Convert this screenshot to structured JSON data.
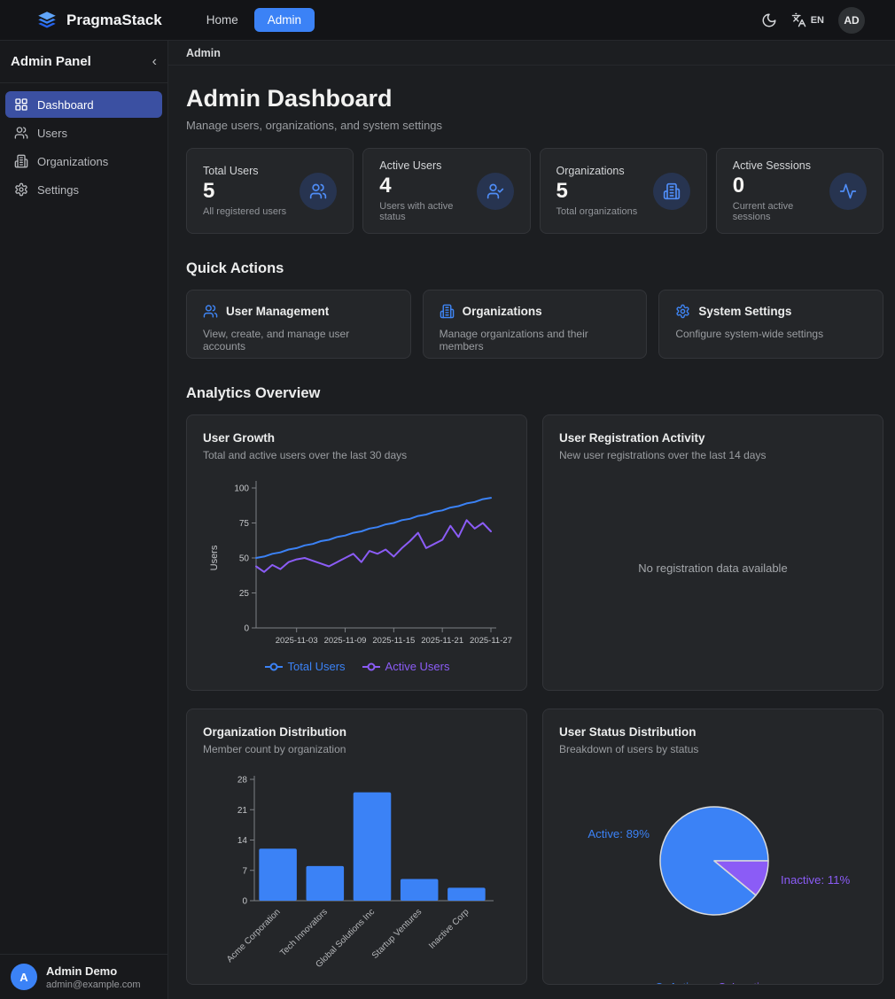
{
  "topbar": {
    "brand": "PragmaStack",
    "nav": [
      {
        "label": "Home"
      },
      {
        "label": "Admin"
      }
    ],
    "language": "EN",
    "avatar_initials": "AD"
  },
  "sidebar": {
    "title": "Admin Panel",
    "collapse_glyph": "‹",
    "items": [
      {
        "label": "Dashboard",
        "icon": "grid-icon",
        "active": true
      },
      {
        "label": "Users",
        "icon": "users-icon",
        "active": false
      },
      {
        "label": "Organizations",
        "icon": "building-icon",
        "active": false
      },
      {
        "label": "Settings",
        "icon": "gear-icon",
        "active": false
      }
    ],
    "user": {
      "initial": "A",
      "name": "Admin Demo",
      "email": "admin@example.com"
    }
  },
  "breadcrumb": "Admin",
  "page": {
    "title": "Admin Dashboard",
    "subtitle": "Manage users, organizations, and system settings"
  },
  "stats": [
    {
      "label": "Total Users",
      "value": "5",
      "caption": "All registered users",
      "icon": "users-icon"
    },
    {
      "label": "Active Users",
      "value": "4",
      "caption": "Users with active status",
      "icon": "user-check-icon"
    },
    {
      "label": "Organizations",
      "value": "5",
      "caption": "Total organizations",
      "icon": "building-icon"
    },
    {
      "label": "Active Sessions",
      "value": "0",
      "caption": "Current active sessions",
      "icon": "activity-icon"
    }
  ],
  "quick_actions": {
    "heading": "Quick Actions",
    "cards": [
      {
        "title": "User Management",
        "desc": "View, create, and manage user accounts",
        "icon": "users-icon"
      },
      {
        "title": "Organizations",
        "desc": "Manage organizations and their members",
        "icon": "building-icon"
      },
      {
        "title": "System Settings",
        "desc": "Configure system-wide settings",
        "icon": "gear-icon"
      }
    ]
  },
  "analytics_heading": "Analytics Overview",
  "colors": {
    "accent_blue": "#3b82f6",
    "accent_purple": "#8b5cf6"
  },
  "chart_data": [
    {
      "type": "line",
      "title": "User Growth",
      "subtitle": "Total and active users over the last 30 days",
      "ylabel": "Users",
      "ylim": [
        0,
        100
      ],
      "yticks": [
        0,
        25,
        50,
        75,
        100
      ],
      "xticks": [
        "2025-11-03",
        "2025-11-09",
        "2025-11-15",
        "2025-11-21",
        "2025-11-27"
      ],
      "xtick_indices": [
        5,
        11,
        17,
        23,
        29
      ],
      "grid": false,
      "legend_position": "bottom",
      "series": [
        {
          "name": "Total Users",
          "color": "#3b82f6",
          "values": [
            50,
            51,
            53,
            54,
            56,
            57,
            59,
            60,
            62,
            63,
            65,
            66,
            68,
            69,
            71,
            72,
            74,
            75,
            77,
            78,
            80,
            81,
            83,
            84,
            86,
            87,
            89,
            90,
            92,
            93
          ]
        },
        {
          "name": "Active Users",
          "color": "#8b5cf6",
          "values": [
            44,
            40,
            45,
            42,
            47,
            49,
            50,
            48,
            46,
            44,
            47,
            50,
            53,
            47,
            55,
            53,
            56,
            51,
            57,
            62,
            68,
            57,
            60,
            63,
            73,
            65,
            77,
            71,
            75,
            69
          ]
        }
      ]
    },
    {
      "type": "empty",
      "title": "User Registration Activity",
      "subtitle": "New user registrations over the last 14 days",
      "empty_text": "No registration data available"
    },
    {
      "type": "bar",
      "title": "Organization Distribution",
      "subtitle": "Member count by organization",
      "categories": [
        "Acme Corporation",
        "Tech Innovators",
        "Global Solutions Inc",
        "Startup Ventures",
        "Inactive Corp"
      ],
      "values": [
        12,
        8,
        25,
        5,
        3
      ],
      "ylim": [
        0,
        28
      ],
      "yticks": [
        0,
        7,
        14,
        21,
        28
      ],
      "grid": false,
      "bar_color": "#3b82f6"
    },
    {
      "type": "pie",
      "title": "User Status Distribution",
      "subtitle": "Breakdown of users by status",
      "legend_position": "bottom",
      "slices": [
        {
          "name": "Active",
          "value": 89,
          "color": "#3b82f6",
          "label": "Active: 89%"
        },
        {
          "name": "Inactive",
          "value": 11,
          "color": "#8b5cf6",
          "label": "Inactive: 11%"
        }
      ]
    }
  ]
}
